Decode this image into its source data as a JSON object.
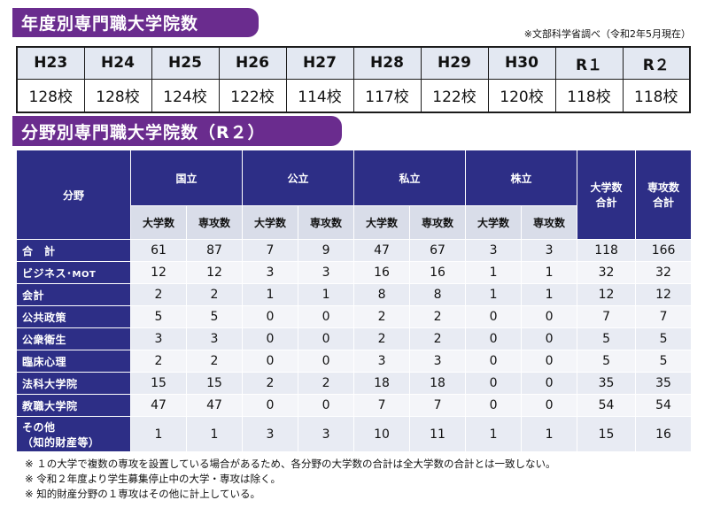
{
  "banner1": "年度別専門職大学院数",
  "banner2": "分野別専門職大学院数（R２）",
  "source_note": "※文部科学省調べ（令和2年5月現在）",
  "years": {
    "headers": [
      "H23",
      "H24",
      "H25",
      "H26",
      "H27",
      "H28",
      "H29",
      "H30",
      "R１",
      "R２"
    ],
    "values": [
      "128校",
      "128校",
      "124校",
      "122校",
      "114校",
      "117校",
      "122校",
      "120校",
      "118校",
      "118校"
    ]
  },
  "fields": {
    "header_field": "分野",
    "group_national": "国立",
    "group_public": "公立",
    "group_private": "私立",
    "group_corp": "株立",
    "total_univ": [
      "大学数",
      "合計"
    ],
    "total_major": [
      "専攻数",
      "合計"
    ],
    "sub_univ": "大学数",
    "sub_major": "専攻数",
    "rows": [
      {
        "label": "合　計",
        "values": [
          "61",
          "87",
          "7",
          "9",
          "47",
          "67",
          "3",
          "3",
          "118",
          "166"
        ]
      },
      {
        "label": "ビジネス･",
        "label_small": "MOT",
        "values": [
          "12",
          "12",
          "3",
          "3",
          "16",
          "16",
          "1",
          "1",
          "32",
          "32"
        ]
      },
      {
        "label": "会計",
        "values": [
          "2",
          "2",
          "1",
          "1",
          "8",
          "8",
          "1",
          "1",
          "12",
          "12"
        ]
      },
      {
        "label": "公共政策",
        "values": [
          "5",
          "5",
          "0",
          "0",
          "2",
          "2",
          "0",
          "0",
          "7",
          "7"
        ]
      },
      {
        "label": "公衆衛生",
        "values": [
          "3",
          "3",
          "0",
          "0",
          "2",
          "2",
          "0",
          "0",
          "5",
          "5"
        ]
      },
      {
        "label": "臨床心理",
        "values": [
          "2",
          "2",
          "0",
          "0",
          "3",
          "3",
          "0",
          "0",
          "5",
          "5"
        ]
      },
      {
        "label": "法科大学院",
        "values": [
          "15",
          "15",
          "2",
          "2",
          "18",
          "18",
          "0",
          "0",
          "35",
          "35"
        ]
      },
      {
        "label": "教職大学院",
        "values": [
          "47",
          "47",
          "0",
          "0",
          "7",
          "7",
          "0",
          "0",
          "54",
          "54"
        ]
      },
      {
        "label": "その他",
        "label2": "（知的財産等）",
        "values": [
          "1",
          "1",
          "3",
          "3",
          "10",
          "11",
          "1",
          "1",
          "15",
          "16"
        ]
      }
    ]
  },
  "notes": [
    "※ １の大学で複数の専攻を設置している場合があるため、各分野の大学数の合計は全大学数の合計とは一致しない。",
    "※ 令和２年度より学生募集停止中の大学・専攻は除く。",
    "※ 知的財産分野の１専攻はその他に計上している。"
  ]
}
